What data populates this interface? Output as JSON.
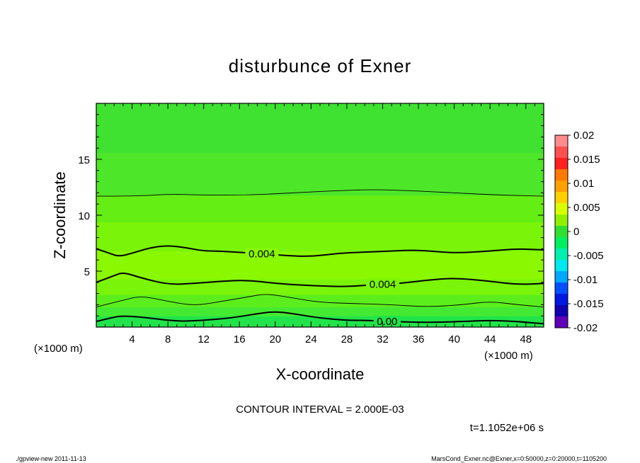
{
  "chart_data": {
    "type": "heatmap",
    "subtype": "contour",
    "title": "disturbunce of Exner",
    "xlabel": "X-coordinate",
    "ylabel": "Z-coordinate",
    "x_unit": "(×1000 m)",
    "y_unit": "(×1000 m)",
    "xlim": [
      0,
      50
    ],
    "ylim": [
      0,
      20
    ],
    "x_ticks": [
      4,
      8,
      12,
      16,
      20,
      24,
      28,
      32,
      36,
      40,
      44,
      48
    ],
    "y_ticks": [
      5,
      10,
      15
    ],
    "colorbar": {
      "ticks": [
        "0.02",
        "0.015",
        "0.01",
        "0.005",
        "0",
        "-0.005",
        "-0.01",
        "-0.015",
        "-0.02"
      ],
      "levels": [
        0.02,
        0.0175,
        0.015,
        0.0125,
        0.01,
        0.0075,
        0.005,
        0.0025,
        0,
        -0.0025,
        -0.005,
        -0.0075,
        -0.01,
        -0.0125,
        -0.015,
        -0.0175,
        -0.02
      ],
      "colors": [
        "#ff8c8c",
        "#ff5050",
        "#ff2020",
        "#ff7800",
        "#ffa000",
        "#ffd000",
        "#d8ff00",
        "#90f000",
        "#30e030",
        "#00f060",
        "#00f0b0",
        "#00e8f0",
        "#00a8ff",
        "#0050ff",
        "#0018e0",
        "#1000b0",
        "#6000b8"
      ]
    },
    "bands": [
      {
        "z_range": [
          0,
          1.0
        ],
        "value_range": [
          -0.002,
          0.0
        ],
        "color": "#22e44a"
      },
      {
        "z_range": [
          1.0,
          1.8
        ],
        "value_range": [
          0.0,
          0.001
        ],
        "color": "#44ea32"
      },
      {
        "z_range": [
          1.8,
          2.9
        ],
        "value_range": [
          0.001,
          0.002
        ],
        "color": "#5cee1c"
      },
      {
        "z_range": [
          2.9,
          4.3
        ],
        "value_range": [
          0.002,
          0.003
        ],
        "color": "#7af408"
      },
      {
        "z_range": [
          4.3,
          6.8
        ],
        "value_range": [
          0.003,
          0.004
        ],
        "color": "#8af800"
      },
      {
        "z_range": [
          6.8,
          9.4
        ],
        "value_range": [
          0.003,
          0.004
        ],
        "color": "#7af408"
      },
      {
        "z_range": [
          9.4,
          11.8
        ],
        "value_range": [
          0.002,
          0.003
        ],
        "color": "#64ee14"
      },
      {
        "z_range": [
          11.8,
          15.6
        ],
        "value_range": [
          0.001,
          0.002
        ],
        "color": "#4ee628"
      },
      {
        "z_range": [
          15.6,
          20
        ],
        "value_range": [
          0.0,
          0.001
        ],
        "color": "#40e232"
      }
    ],
    "contours": [
      {
        "level": 0.0,
        "label": "0.00",
        "label_x": 32.5,
        "style": "thick",
        "z": [
          0.5,
          0.9,
          1.0,
          0.9,
          0.5,
          0.6,
          0.8,
          1.2,
          1.4,
          1.2,
          0.8,
          0.6,
          0.6,
          0.5,
          0.4,
          0.5,
          0.6,
          0.5,
          0.3
        ],
        "x": [
          0,
          2,
          3,
          5,
          9,
          12,
          15,
          18,
          20,
          22,
          25,
          28,
          30,
          33,
          37,
          41,
          44,
          47,
          50
        ]
      },
      {
        "level": 0.002,
        "label": "",
        "style": "thin",
        "z": [
          1.8,
          2.4,
          2.8,
          2.3,
          1.9,
          2.3,
          2.7,
          3.0,
          2.6,
          2.2,
          2.1,
          2.0,
          1.8,
          2.0,
          2.3,
          2.0,
          1.8
        ],
        "x": [
          0,
          3,
          5,
          8,
          11,
          14,
          17,
          19,
          22,
          25,
          29,
          33,
          37,
          41,
          44,
          47,
          50
        ]
      },
      {
        "level": 0.004,
        "label": "0.004",
        "label_x": 32.0,
        "style": "thick",
        "z": [
          4.0,
          4.6,
          4.9,
          4.4,
          3.8,
          3.9,
          4.1,
          4.2,
          3.9,
          3.7,
          3.6,
          3.8,
          3.9,
          4.2,
          4.4,
          4.1,
          3.8,
          3.9
        ],
        "x": [
          0,
          2,
          3,
          5,
          8,
          11,
          14,
          17,
          20,
          24,
          28,
          31,
          34,
          37,
          40,
          44,
          47,
          50
        ]
      },
      {
        "level": 0.004,
        "label": "0.004",
        "label_x": 18.5,
        "style": "thick",
        "z": [
          7.0,
          6.6,
          6.3,
          6.6,
          7.1,
          7.3,
          7.1,
          6.8,
          6.8,
          6.4,
          6.3,
          6.6,
          6.7,
          6.8,
          6.9,
          6.6,
          6.8,
          7.0,
          6.9
        ],
        "x": [
          0,
          1.5,
          2.5,
          4,
          6,
          8,
          10,
          12,
          14,
          21,
          24,
          27,
          30,
          33,
          36,
          40,
          44,
          47,
          50
        ]
      },
      {
        "level": 0.002,
        "label": "",
        "style": "thin",
        "z": [
          11.7,
          11.7,
          11.9,
          11.8,
          11.8,
          12.0,
          12.2,
          12.3,
          12.2,
          12.0,
          11.8,
          11.7
        ],
        "x": [
          0,
          5,
          8,
          12,
          17,
          22,
          27,
          31,
          35,
          40,
          45,
          50
        ]
      }
    ]
  },
  "contour_interval_text": "CONTOUR INTERVAL = 2.000E-03",
  "time_text": "t=1.1052e+06 s",
  "footer": {
    "left": "./gpview-new   2011-11-13",
    "right": "MarsCond_Exner.nc@Exner,x=0:50000,z=0:20000,t=1105200"
  }
}
